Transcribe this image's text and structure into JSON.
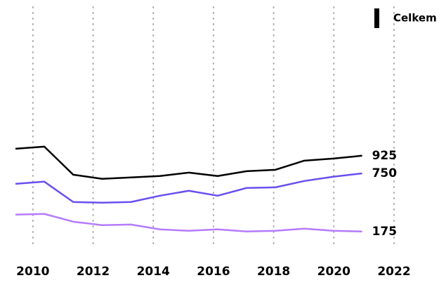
{
  "chart_data": {
    "type": "line",
    "x": [
      2009.42,
      2010.38,
      2011.34,
      2012.3,
      2013.26,
      2014.22,
      2015.18,
      2016.14,
      2017.1,
      2018.06,
      2019.02,
      2019.98,
      2020.94
    ],
    "series": [
      {
        "name": "Celkem",
        "color": "#000000",
        "values": [
          994,
          1015,
          737,
          696,
          710,
          724,
          758,
          724,
          772,
          786,
          876,
          897,
          925
        ]
      },
      {
        "color": "#6a4ff0",
        "values": [
          647,
          668,
          467,
          460,
          467,
          529,
          578,
          529,
          606,
          612,
          675,
          717,
          750
        ]
      },
      {
        "color": "#b57bff",
        "values": [
          342,
          349,
          272,
          238,
          244,
          196,
          182,
          196,
          175,
          182,
          203,
          182,
          175
        ]
      }
    ],
    "xlim": [
      2009.42,
      2022
    ],
    "xticks": [
      2010,
      2012,
      2014,
      2016,
      2018,
      2020,
      2022
    ],
    "ylim": [
      0,
      2400
    ],
    "grid": true,
    "legend": "top-right"
  }
}
